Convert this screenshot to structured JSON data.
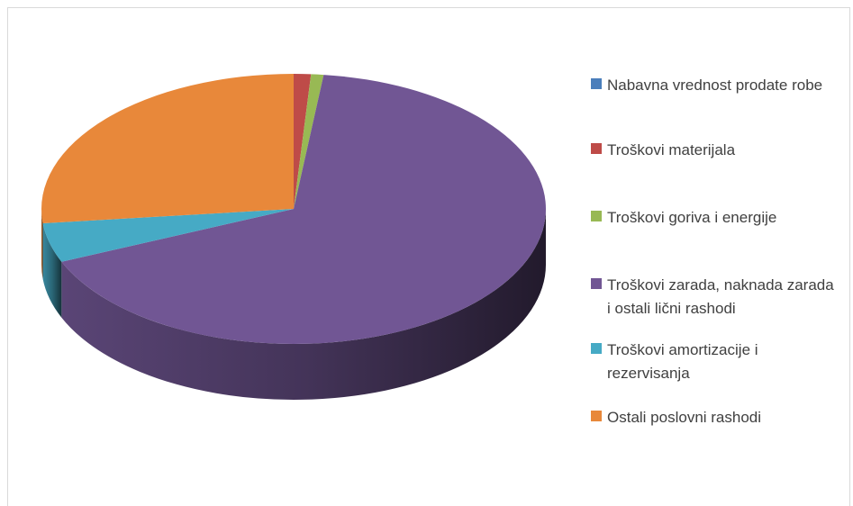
{
  "chart_data": {
    "type": "pie3d",
    "categories": [
      "Nabavna vrednost prodate robe",
      "Troškovi materijala",
      "Troškovi goriva i energije",
      "Troškovi zarada, naknada zarada i ostali lični rashodi",
      "Troškovi amortizacije i rezervisanja",
      "Ostali poslovni rashodi"
    ],
    "values": [
      0,
      1.1,
      0.8,
      66.7,
      4.7,
      26.7
    ],
    "colors": [
      "#4a7ebb",
      "#be4b48",
      "#98b954",
      "#715694",
      "#46aac5",
      "#e8883a"
    ],
    "legend": "right"
  }
}
